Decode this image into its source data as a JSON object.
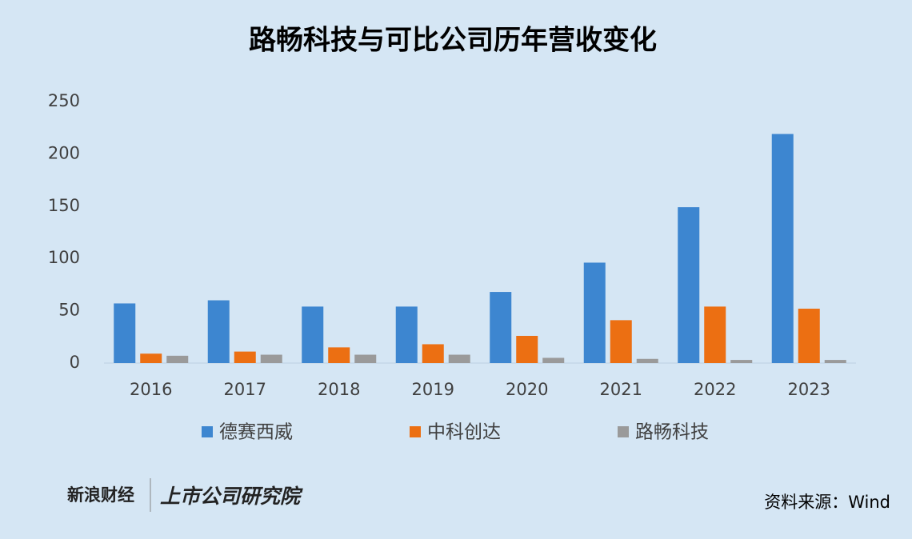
{
  "chart_data": {
    "type": "bar",
    "title": "路畅科技与可比公司历年营收变化",
    "categories": [
      "2016",
      "2017",
      "2018",
      "2019",
      "2020",
      "2021",
      "2022",
      "2023"
    ],
    "series": [
      {
        "name": "德赛西威",
        "color": "#3d86d0",
        "values": [
          57,
          60,
          54,
          54,
          68,
          96,
          149,
          219
        ]
      },
      {
        "name": "中科创达",
        "color": "#ec6f12",
        "values": [
          9,
          11,
          15,
          18,
          26,
          41,
          54,
          52
        ]
      },
      {
        "name": "路畅科技",
        "color": "#9a9a9a",
        "values": [
          7,
          8,
          8,
          8,
          5,
          4,
          3,
          3
        ]
      }
    ],
    "ylim": [
      0,
      250
    ],
    "yticks": [
      0,
      50,
      100,
      150,
      200,
      250
    ],
    "grid": false,
    "legend": "bottom",
    "source": "资料来源：Wind",
    "logos": [
      "新浪财经",
      "上市公司研究院"
    ]
  }
}
